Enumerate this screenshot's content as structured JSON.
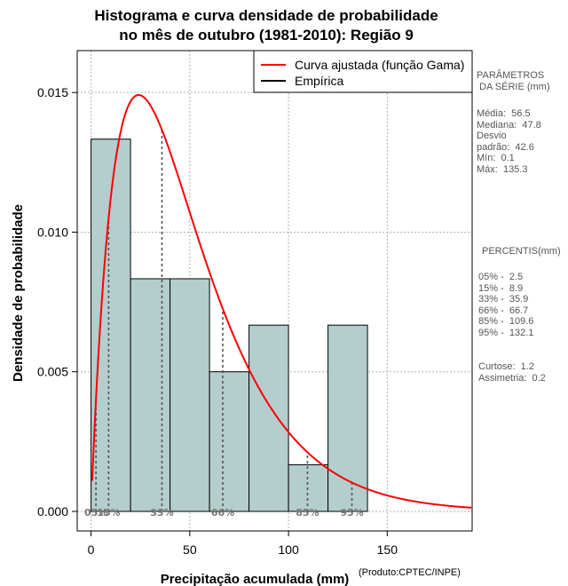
{
  "chart_data": {
    "type": "bar",
    "title": [
      "Histograma e curva densidade de probabilidade",
      "no mês de outubro (1981-2010): Região 9"
    ],
    "xlabel": "Precipitação acumulada (mm)",
    "ylabel": "Densidade de probabilidade",
    "xlim": [
      -7,
      193
    ],
    "ylim": [
      -0.0007,
      0.0165
    ],
    "x_ticks": [
      0,
      50,
      100,
      150
    ],
    "x_tick_labels": [
      "0",
      "50",
      "100",
      "150"
    ],
    "y_ticks": [
      0.0,
      0.005,
      0.01,
      0.015
    ],
    "y_tick_labels": [
      "0.000",
      "0.005",
      "0.010",
      "0.015"
    ],
    "grid": true,
    "bins": [
      {
        "x0": 0,
        "x1": 20,
        "density": 0.01333
      },
      {
        "x0": 20,
        "x1": 40,
        "density": 0.00833
      },
      {
        "x0": 40,
        "x1": 60,
        "density": 0.00833
      },
      {
        "x0": 60,
        "x1": 80,
        "density": 0.005
      },
      {
        "x0": 80,
        "x1": 100,
        "density": 0.00667
      },
      {
        "x0": 100,
        "x1": 120,
        "density": 0.00167
      },
      {
        "x0": 120,
        "x1": 140,
        "density": 0.00667
      }
    ],
    "bar_color": "#b4cdcd",
    "fitted_curve": {
      "distribution": "gamma",
      "shape": 1.96,
      "scale": 25.1,
      "color": "#ff0000"
    },
    "percentile_markers": [
      {
        "label": "05%",
        "x": 2.5
      },
      {
        "label": "15%",
        "x": 8.9
      },
      {
        "label": "33%",
        "x": 35.9
      },
      {
        "label": "66%",
        "x": 66.7
      },
      {
        "label": "85%",
        "x": 109.6
      },
      {
        "label": "95%",
        "x": 132.1
      }
    ],
    "legend": {
      "position": "top-right",
      "entries": [
        {
          "label": "Curva ajustada (função Gama)",
          "color": "#ff0000"
        },
        {
          "label": "Empírica",
          "color": "#000000"
        }
      ]
    }
  },
  "side_panel": {
    "params_title": "PARÂMETROS\n DA SÉRIE (mm)",
    "params_text": "Média:  56.5\nMediana:  47.8\nDesvio\npadrão:  42.6\nMín:  0.1\nMáx:  135.3",
    "percentis_title": "PERCENTIS(mm)",
    "percentis_text": "05% -  2.5\n15% -  8.9\n33% -  35.9\n66% -  66.7\n85% -  109.6\n95% -  132.1",
    "stats_text": "Curtose:  1.2\nAssimetria:  0.2"
  },
  "credit": "(Produto:CPTEC/INPE)"
}
